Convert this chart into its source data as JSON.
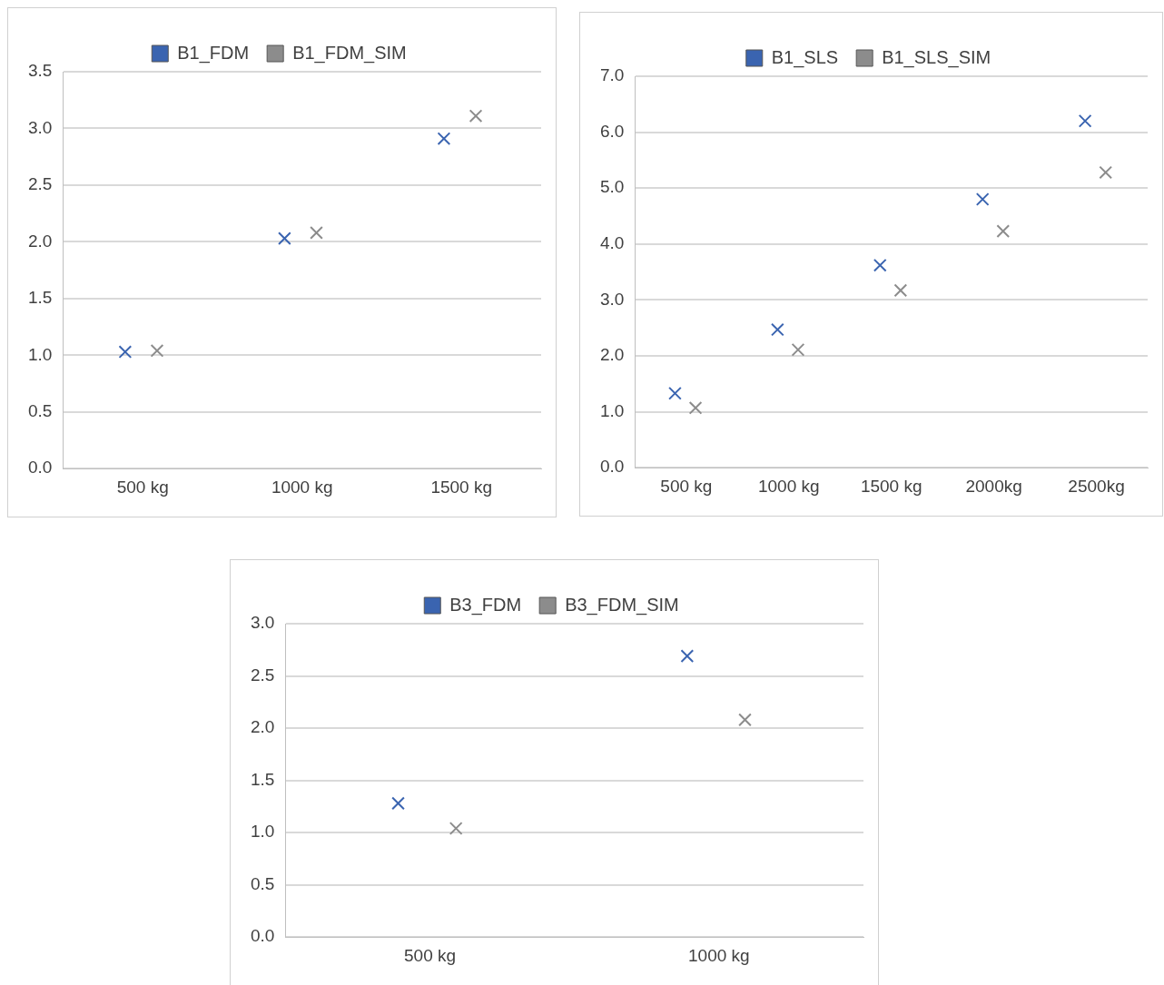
{
  "chart_data": [
    {
      "type": "scatter",
      "categories": [
        "500 kg",
        "1000 kg",
        "1500 kg"
      ],
      "series": [
        {
          "name": "B1_FDM",
          "color": "#3a64b0",
          "values": [
            1.03,
            2.03,
            2.91
          ]
        },
        {
          "name": "B1_FDM_SIM",
          "color": "#8c8c8c",
          "values": [
            1.04,
            2.08,
            3.11
          ]
        }
      ],
      "ylim": [
        0,
        3.5
      ],
      "yticks": [
        {
          "value": 0,
          "label": "0.0"
        },
        {
          "value": 0.5,
          "label": "0.5"
        },
        {
          "value": 1,
          "label": "1.0"
        },
        {
          "value": 1.5,
          "label": "1.5"
        },
        {
          "value": 2,
          "label": "2.0"
        },
        {
          "value": 2.5,
          "label": "2.5"
        },
        {
          "value": 3,
          "label": "3.0"
        },
        {
          "value": 3.5,
          "label": "3.5"
        }
      ],
      "grid": "y",
      "legend": "top",
      "marker": "cross"
    },
    {
      "type": "scatter",
      "categories": [
        "500 kg",
        "1000 kg",
        "1500 kg",
        "2000kg",
        "2500kg"
      ],
      "series": [
        {
          "name": "B1_SLS",
          "color": "#3a64b0",
          "values": [
            1.33,
            2.47,
            3.62,
            4.8,
            6.2
          ]
        },
        {
          "name": "B1_SLS_SIM",
          "color": "#8c8c8c",
          "values": [
            1.07,
            2.11,
            3.17,
            4.23,
            5.28
          ]
        }
      ],
      "ylim": [
        0,
        7
      ],
      "yticks": [
        {
          "value": 0,
          "label": "0.0"
        },
        {
          "value": 1,
          "label": "1.0"
        },
        {
          "value": 2,
          "label": "2.0"
        },
        {
          "value": 3,
          "label": "3.0"
        },
        {
          "value": 4,
          "label": "4.0"
        },
        {
          "value": 5,
          "label": "5.0"
        },
        {
          "value": 6,
          "label": "6.0"
        },
        {
          "value": 7,
          "label": "7.0"
        }
      ],
      "grid": "y",
      "legend": "top",
      "marker": "cross"
    },
    {
      "type": "scatter",
      "categories": [
        "500 kg",
        "1000 kg"
      ],
      "series": [
        {
          "name": "B3_FDM",
          "color": "#3a64b0",
          "values": [
            1.28,
            2.69
          ]
        },
        {
          "name": "B3_FDM_SIM",
          "color": "#8c8c8c",
          "values": [
            1.04,
            2.08
          ]
        }
      ],
      "ylim": [
        0,
        3
      ],
      "yticks": [
        {
          "value": 0,
          "label": "0.0"
        },
        {
          "value": 0.5,
          "label": "0.5"
        },
        {
          "value": 1,
          "label": "1.0"
        },
        {
          "value": 1.5,
          "label": "1.5"
        },
        {
          "value": 2,
          "label": "2.0"
        },
        {
          "value": 2.5,
          "label": "2.5"
        },
        {
          "value": 3,
          "label": "3.0"
        }
      ],
      "grid": "y",
      "legend": "top",
      "marker": "cross"
    }
  ]
}
